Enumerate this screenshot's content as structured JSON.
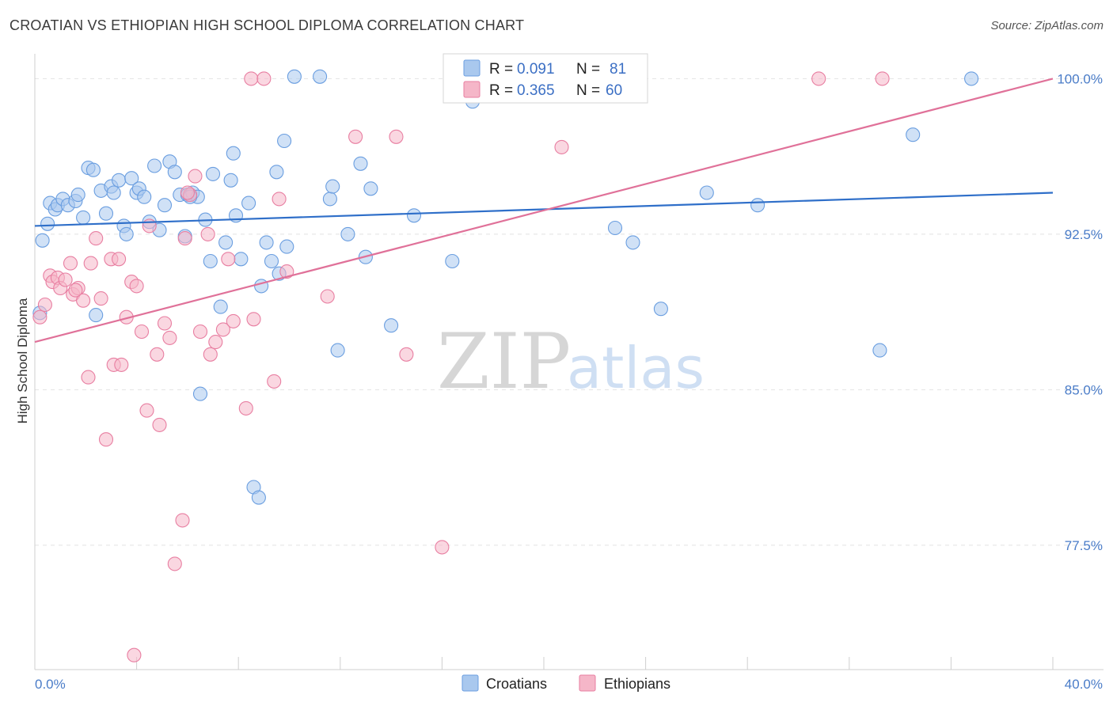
{
  "header": {
    "title": "CROATIAN VS ETHIOPIAN HIGH SCHOOL DIPLOMA CORRELATION CHART",
    "source": "Source: ZipAtlas.com"
  },
  "watermark": {
    "zip": "ZIP",
    "atlas": "atlas"
  },
  "legend_top": [
    {
      "r_label": "R = ",
      "r_value": "0.091",
      "n_label": "N = ",
      "n_value": "81",
      "color": "#a9c8ee"
    },
    {
      "r_label": "R = ",
      "r_value": "0.365",
      "n_label": "N = ",
      "n_value": "60",
      "color": "#f5b6c8"
    }
  ],
  "chart_data": {
    "type": "scatter",
    "ylabel": "High School Diploma",
    "xlim": [
      0,
      40
    ],
    "ylim": [
      71.5,
      101.2
    ],
    "x_tick_labels": [
      {
        "x": 0,
        "label": "0.0%"
      },
      {
        "x": 40,
        "label": "40.0%"
      }
    ],
    "y_ticks": [
      {
        "y": 100.0,
        "label": "100.0%"
      },
      {
        "y": 92.5,
        "label": "92.5%"
      },
      {
        "y": 85.0,
        "label": "85.0%"
      },
      {
        "y": 77.5,
        "label": "77.5%"
      }
    ],
    "series": [
      {
        "name": "Croatians",
        "color": "#6a9ee0",
        "fill": "#a9c8ee",
        "trend": {
          "x0": 0,
          "y0": 92.9,
          "x1": 40,
          "y1": 94.5
        },
        "points": [
          [
            0.3,
            92.2
          ],
          [
            0.5,
            93.0
          ],
          [
            0.6,
            94.0
          ],
          [
            0.8,
            93.7
          ],
          [
            0.9,
            93.9
          ],
          [
            1.1,
            94.2
          ],
          [
            1.3,
            93.9
          ],
          [
            1.6,
            94.1
          ],
          [
            1.7,
            94.4
          ],
          [
            1.9,
            93.3
          ],
          [
            2.1,
            95.7
          ],
          [
            2.3,
            95.6
          ],
          [
            2.4,
            88.6
          ],
          [
            2.6,
            94.6
          ],
          [
            2.8,
            93.5
          ],
          [
            3.0,
            94.8
          ],
          [
            3.1,
            94.5
          ],
          [
            3.3,
            95.1
          ],
          [
            3.5,
            92.9
          ],
          [
            3.6,
            92.5
          ],
          [
            3.8,
            95.2
          ],
          [
            4.0,
            94.5
          ],
          [
            4.1,
            94.7
          ],
          [
            4.3,
            94.3
          ],
          [
            4.5,
            93.1
          ],
          [
            4.7,
            95.8
          ],
          [
            4.9,
            92.7
          ],
          [
            5.1,
            93.9
          ],
          [
            5.3,
            96.0
          ],
          [
            5.5,
            95.5
          ],
          [
            5.7,
            94.4
          ],
          [
            5.9,
            92.4
          ],
          [
            6.0,
            94.4
          ],
          [
            6.2,
            94.5
          ],
          [
            6.4,
            94.3
          ],
          [
            6.5,
            84.8
          ],
          [
            6.7,
            93.2
          ],
          [
            6.9,
            91.2
          ],
          [
            7.0,
            95.4
          ],
          [
            7.3,
            89.0
          ],
          [
            7.5,
            92.1
          ],
          [
            7.7,
            95.1
          ],
          [
            7.8,
            96.4
          ],
          [
            7.9,
            93.4
          ],
          [
            8.1,
            91.3
          ],
          [
            8.4,
            94.0
          ],
          [
            8.6,
            80.3
          ],
          [
            8.8,
            79.8
          ],
          [
            8.9,
            90.0
          ],
          [
            9.1,
            92.1
          ],
          [
            9.3,
            91.2
          ],
          [
            9.5,
            95.5
          ],
          [
            9.6,
            90.6
          ],
          [
            9.8,
            97.0
          ],
          [
            9.9,
            91.9
          ],
          [
            10.2,
            100.1
          ],
          [
            11.2,
            100.1
          ],
          [
            11.6,
            94.2
          ],
          [
            11.7,
            94.8
          ],
          [
            11.9,
            86.9
          ],
          [
            12.3,
            92.5
          ],
          [
            12.8,
            95.9
          ],
          [
            13.0,
            91.4
          ],
          [
            13.2,
            94.7
          ],
          [
            14.0,
            88.1
          ],
          [
            14.9,
            93.4
          ],
          [
            16.4,
            91.2
          ],
          [
            17.2,
            98.9
          ],
          [
            17.6,
            100.2
          ],
          [
            18.0,
            100.3
          ],
          [
            22.7,
            100.0
          ],
          [
            22.8,
            92.8
          ],
          [
            23.5,
            92.1
          ],
          [
            24.6,
            88.9
          ],
          [
            26.4,
            94.5
          ],
          [
            28.4,
            93.9
          ],
          [
            33.2,
            86.9
          ],
          [
            34.5,
            97.3
          ],
          [
            36.8,
            100.0
          ],
          [
            0.2,
            88.7
          ],
          [
            6.1,
            94.3
          ]
        ]
      },
      {
        "name": "Ethiopians",
        "color": "#e87ea1",
        "fill": "#f5b6c8",
        "trend": {
          "x0": 0,
          "y0": 87.3,
          "x1": 40,
          "y1": 100.0
        },
        "points": [
          [
            0.2,
            88.5
          ],
          [
            0.4,
            89.1
          ],
          [
            0.6,
            90.5
          ],
          [
            0.7,
            90.2
          ],
          [
            0.9,
            90.4
          ],
          [
            1.0,
            89.9
          ],
          [
            1.2,
            90.3
          ],
          [
            1.4,
            91.1
          ],
          [
            1.5,
            89.6
          ],
          [
            1.7,
            89.9
          ],
          [
            1.9,
            89.3
          ],
          [
            2.1,
            85.6
          ],
          [
            2.2,
            91.1
          ],
          [
            2.4,
            92.3
          ],
          [
            2.6,
            89.4
          ],
          [
            2.8,
            82.6
          ],
          [
            3.0,
            91.3
          ],
          [
            3.1,
            86.2
          ],
          [
            3.3,
            91.3
          ],
          [
            3.4,
            86.2
          ],
          [
            3.6,
            88.5
          ],
          [
            3.8,
            90.2
          ],
          [
            4.0,
            90.0
          ],
          [
            4.2,
            87.8
          ],
          [
            4.4,
            84.0
          ],
          [
            4.5,
            92.9
          ],
          [
            4.8,
            86.7
          ],
          [
            4.9,
            83.3
          ],
          [
            5.1,
            88.2
          ],
          [
            5.3,
            87.5
          ],
          [
            5.5,
            76.6
          ],
          [
            5.8,
            78.7
          ],
          [
            5.9,
            92.3
          ],
          [
            6.1,
            94.4
          ],
          [
            6.3,
            95.3
          ],
          [
            6.5,
            87.8
          ],
          [
            6.8,
            92.5
          ],
          [
            6.9,
            86.7
          ],
          [
            7.1,
            87.3
          ],
          [
            7.4,
            87.9
          ],
          [
            7.6,
            91.3
          ],
          [
            7.8,
            88.3
          ],
          [
            8.3,
            84.1
          ],
          [
            8.5,
            100.0
          ],
          [
            8.6,
            88.4
          ],
          [
            9.0,
            100.0
          ],
          [
            9.4,
            85.4
          ],
          [
            9.6,
            94.2
          ],
          [
            9.9,
            90.7
          ],
          [
            11.5,
            89.5
          ],
          [
            12.6,
            97.2
          ],
          [
            14.2,
            97.2
          ],
          [
            14.6,
            86.7
          ],
          [
            16.0,
            77.4
          ],
          [
            20.7,
            96.7
          ],
          [
            30.8,
            100.0
          ],
          [
            33.3,
            100.0
          ],
          [
            3.9,
            72.2
          ],
          [
            6.0,
            94.5
          ],
          [
            1.6,
            89.8
          ]
        ]
      }
    ]
  }
}
